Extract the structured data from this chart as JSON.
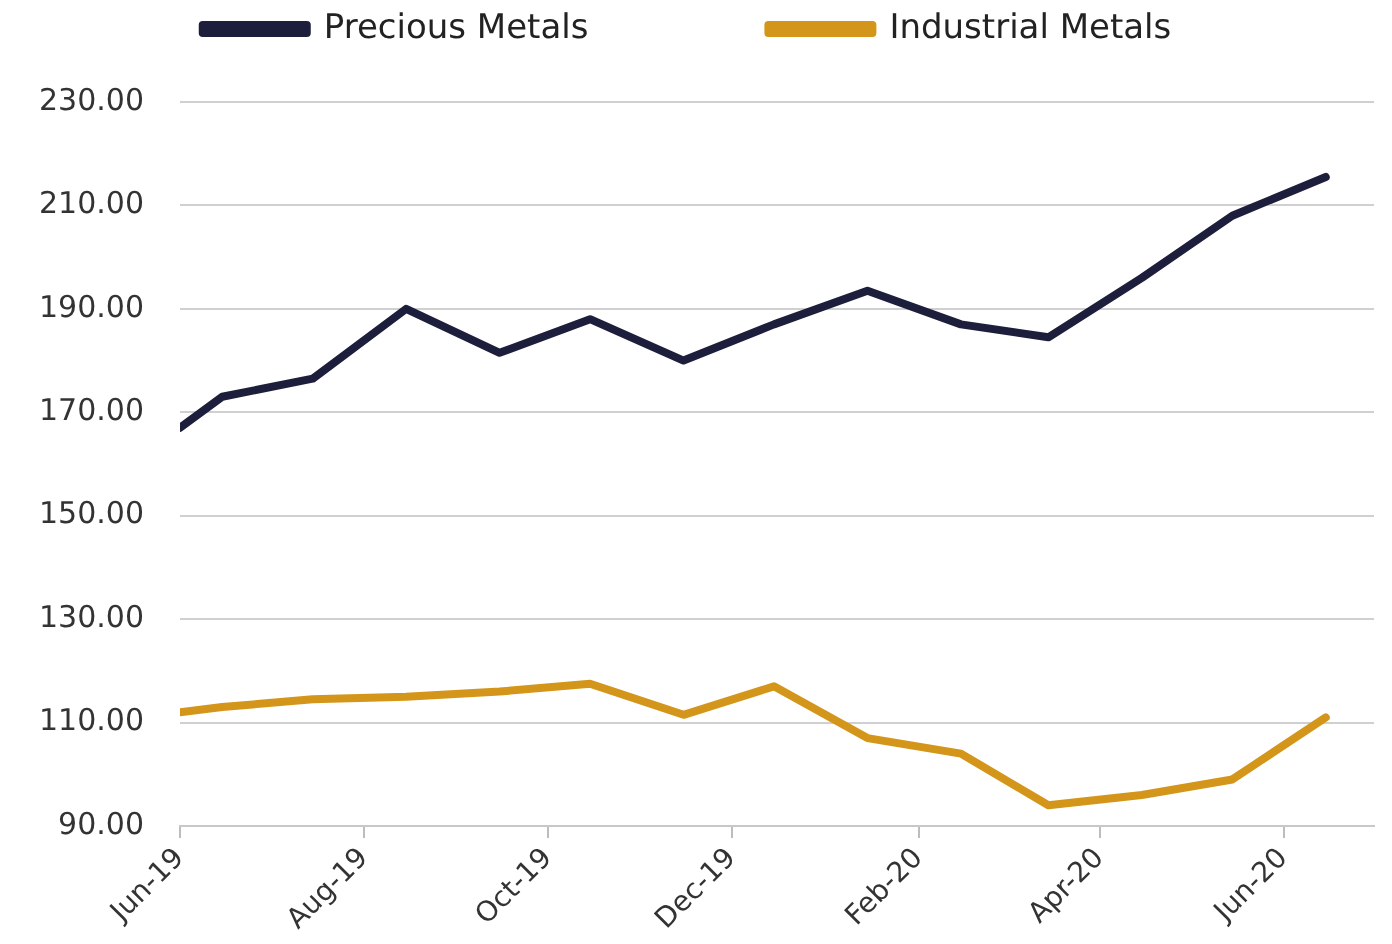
{
  "chart_data": {
    "type": "line",
    "x": [
      "2019-06-01",
      "2019-06-15",
      "2019-07-15",
      "2019-08-15",
      "2019-09-15",
      "2019-10-15",
      "2019-11-15",
      "2019-12-15",
      "2020-01-15",
      "2020-02-15",
      "2020-03-15",
      "2020-04-15",
      "2020-05-15",
      "2020-06-15"
    ],
    "series": [
      {
        "name": "Precious Metals",
        "color": "#1c1e3c",
        "values": [
          167,
          173,
          176.5,
          190,
          181.5,
          188,
          180,
          187,
          193.5,
          187,
          184.5,
          196,
          208,
          215.5
        ]
      },
      {
        "name": "Industrial Metals",
        "color": "#d4961a",
        "values": [
          112,
          113,
          114.5,
          115,
          116,
          117.5,
          111.5,
          117,
          107,
          104,
          94,
          96,
          99,
          111
        ]
      }
    ],
    "xlim": [
      "2019-06-01",
      "2020-07-01"
    ],
    "xticks": [
      {
        "value": "2019-06-01",
        "label": "Jun-19"
      },
      {
        "value": "2019-08-01",
        "label": "Aug-19"
      },
      {
        "value": "2019-10-01",
        "label": "Oct-19"
      },
      {
        "value": "2019-12-01",
        "label": "Dec-19"
      },
      {
        "value": "2020-02-01",
        "label": "Feb-20"
      },
      {
        "value": "2020-04-01",
        "label": "Apr-20"
      },
      {
        "value": "2020-06-01",
        "label": "Jun-20"
      }
    ],
    "ylim": [
      90,
      230
    ],
    "yticks": [
      {
        "value": 90,
        "label": "90.00"
      },
      {
        "value": 110,
        "label": "110.00"
      },
      {
        "value": 130,
        "label": "130.00"
      },
      {
        "value": 150,
        "label": "150.00"
      },
      {
        "value": 170,
        "label": "170.00"
      },
      {
        "value": 190,
        "label": "190.00"
      },
      {
        "value": 210,
        "label": "210.00"
      },
      {
        "value": 230,
        "label": "230.00"
      }
    ],
    "grid": "y",
    "legend": "top",
    "marker": "none"
  }
}
